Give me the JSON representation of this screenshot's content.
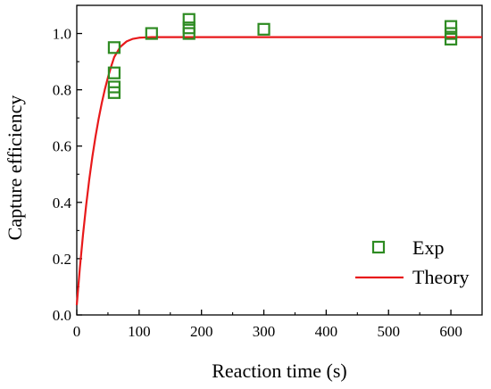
{
  "chart_data": {
    "type": "scatter",
    "title": "",
    "xlabel": "Reaction time (s)",
    "ylabel": "Capture efficiency",
    "xlim": [
      0,
      650
    ],
    "ylim": [
      0,
      1.1
    ],
    "xticks": [
      0,
      100,
      200,
      300,
      400,
      500,
      600
    ],
    "yticks": [
      0.0,
      0.2,
      0.4,
      0.6,
      0.8,
      1.0
    ],
    "xtick_labels": [
      "0",
      "100",
      "200",
      "300",
      "400",
      "500",
      "600"
    ],
    "ytick_labels": [
      "0.0",
      "0.2",
      "0.4",
      "0.6",
      "0.8",
      "1.0"
    ],
    "grid": false,
    "legend_position": "bottom-right",
    "series": [
      {
        "name": "Exp",
        "type": "scatter",
        "marker": "open-square",
        "color": "#2e8b22",
        "x": [
          60,
          60,
          60,
          60,
          120,
          180,
          180,
          180,
          300,
          600,
          600,
          600
        ],
        "y": [
          0.95,
          0.86,
          0.81,
          0.79,
          1.0,
          1.05,
          1.02,
          1.0,
          1.015,
          1.025,
          1.0,
          0.98
        ]
      },
      {
        "name": "Theory",
        "type": "line",
        "color": "#e8191b",
        "x": [
          0,
          5,
          10,
          15,
          20,
          25,
          30,
          35,
          40,
          45,
          50,
          55,
          60,
          70,
          80,
          90,
          100,
          110,
          120,
          140,
          160,
          180,
          200,
          250,
          300,
          400,
          500,
          600,
          650
        ],
        "y": [
          0.035,
          0.168,
          0.285,
          0.389,
          0.481,
          0.562,
          0.633,
          0.696,
          0.752,
          0.801,
          0.844,
          0.882,
          0.916,
          0.953,
          0.972,
          0.981,
          0.985,
          0.986,
          0.987,
          0.987,
          0.987,
          0.987,
          0.987,
          0.987,
          0.987,
          0.987,
          0.987,
          0.987,
          0.987
        ]
      }
    ]
  }
}
